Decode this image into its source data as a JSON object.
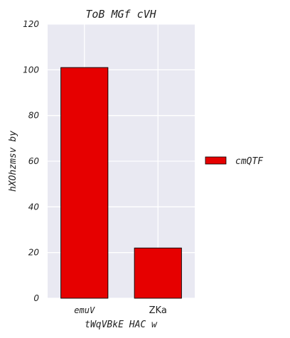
{
  "chart_data": {
    "type": "bar",
    "title": "ToB MGf cVH",
    "xlabel": "tWqVBkE HAC w",
    "ylabel": "hXOhzmsv by",
    "categories": [
      "emuV",
      "ZKa"
    ],
    "series": [
      {
        "name": "cmQTF",
        "values": [
          101,
          22
        ],
        "color": "#e60000"
      }
    ],
    "ylim": [
      0,
      120
    ],
    "yticks": [
      0,
      20,
      40,
      60,
      80,
      100,
      120
    ],
    "grid": true,
    "legend_position": "right",
    "colors": {
      "plot_background": "#e9e9f2",
      "grid": "#ffffff",
      "bar_edge": "#000000"
    }
  }
}
